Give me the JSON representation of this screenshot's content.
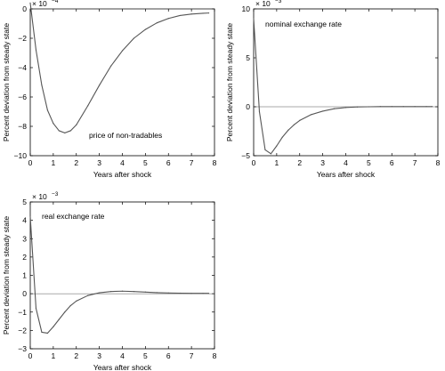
{
  "chart_data": [
    {
      "type": "line",
      "title": "",
      "xlabel": "Years after shock",
      "ylabel": "Percent deviation from steady state",
      "annotation": "price of non-tradables",
      "exponent_label": "× 10",
      "exponent_power": "−4",
      "xlim": [
        0,
        8
      ],
      "ylim": [
        -10,
        0
      ],
      "xticks": [
        0,
        1,
        2,
        3,
        4,
        5,
        6,
        7,
        8
      ],
      "yticks": [
        -10,
        -8,
        -6,
        -4,
        -2,
        0
      ],
      "xtick_labels": [
        "0",
        "1",
        "2",
        "3",
        "4",
        "5",
        "6",
        "7",
        "8"
      ],
      "ytick_labels": [
        "−10",
        "−8",
        "−6",
        "−4",
        "−2",
        "0"
      ],
      "grid": false,
      "zero_line": true,
      "series": [
        {
          "x": [
            0,
            0.25,
            0.5,
            0.75,
            1.0,
            1.25,
            1.5,
            1.75,
            2.0,
            2.5,
            3.0,
            3.5,
            4.0,
            4.5,
            5.0,
            5.5,
            6.0,
            6.5,
            7.0,
            7.5,
            7.75
          ],
          "values": [
            0.4,
            -2.8,
            -5.2,
            -6.9,
            -7.8,
            -8.3,
            -8.45,
            -8.3,
            -7.9,
            -6.6,
            -5.2,
            -3.9,
            -2.85,
            -2.0,
            -1.4,
            -0.95,
            -0.65,
            -0.45,
            -0.35,
            -0.3,
            -0.28
          ]
        }
      ]
    },
    {
      "type": "line",
      "title": "",
      "xlabel": "Years after shock",
      "ylabel": "Percent deviation from steady state",
      "annotation": "nominal exchange rate",
      "exponent_label": "× 10",
      "exponent_power": "−3",
      "xlim": [
        0,
        8
      ],
      "ylim": [
        -5,
        10
      ],
      "xticks": [
        0,
        1,
        2,
        3,
        4,
        5,
        6,
        7,
        8
      ],
      "yticks": [
        -5,
        0,
        5,
        10
      ],
      "xtick_labels": [
        "0",
        "1",
        "2",
        "3",
        "4",
        "5",
        "6",
        "7",
        "8"
      ],
      "ytick_labels": [
        "−5",
        "0",
        "5",
        "10"
      ],
      "grid": false,
      "zero_line": true,
      "series": [
        {
          "x": [
            0,
            0.25,
            0.5,
            0.75,
            1.0,
            1.25,
            1.5,
            1.75,
            2.0,
            2.5,
            3.0,
            3.5,
            4.0,
            4.5,
            5.0,
            5.5,
            6.0,
            6.5,
            7.0,
            7.5,
            7.75
          ],
          "values": [
            9.0,
            -0.5,
            -4.4,
            -4.8,
            -4.0,
            -3.1,
            -2.4,
            -1.85,
            -1.4,
            -0.8,
            -0.45,
            -0.2,
            -0.08,
            -0.02,
            0.0,
            0.02,
            0.02,
            0.02,
            0.02,
            0.02,
            0.02
          ]
        }
      ]
    },
    {
      "type": "line",
      "title": "",
      "xlabel": "Years after shock",
      "ylabel": "Percent deviation from steady state",
      "annotation": "real exchange rate",
      "exponent_label": "× 10",
      "exponent_power": "−3",
      "xlim": [
        0,
        8
      ],
      "ylim": [
        -3,
        5
      ],
      "xticks": [
        0,
        1,
        2,
        3,
        4,
        5,
        6,
        7,
        8
      ],
      "yticks": [
        -3,
        -2,
        -1,
        0,
        1,
        2,
        3,
        4,
        5
      ],
      "xtick_labels": [
        "0",
        "1",
        "2",
        "3",
        "4",
        "5",
        "6",
        "7",
        "8"
      ],
      "ytick_labels": [
        "−3",
        "−2",
        "−1",
        "0",
        "1",
        "2",
        "3",
        "4",
        "5"
      ],
      "grid": false,
      "zero_line": true,
      "series": [
        {
          "x": [
            0,
            0.25,
            0.5,
            0.75,
            1.0,
            1.25,
            1.5,
            1.75,
            2.0,
            2.5,
            3.0,
            3.5,
            4.0,
            4.5,
            5.0,
            5.5,
            6.0,
            6.5,
            7.0,
            7.5,
            7.75
          ],
          "values": [
            4.2,
            -0.8,
            -2.1,
            -2.15,
            -1.8,
            -1.4,
            -1.0,
            -0.65,
            -0.4,
            -0.1,
            0.05,
            0.12,
            0.14,
            0.12,
            0.09,
            0.06,
            0.04,
            0.03,
            0.02,
            0.02,
            0.02
          ]
        }
      ]
    }
  ]
}
